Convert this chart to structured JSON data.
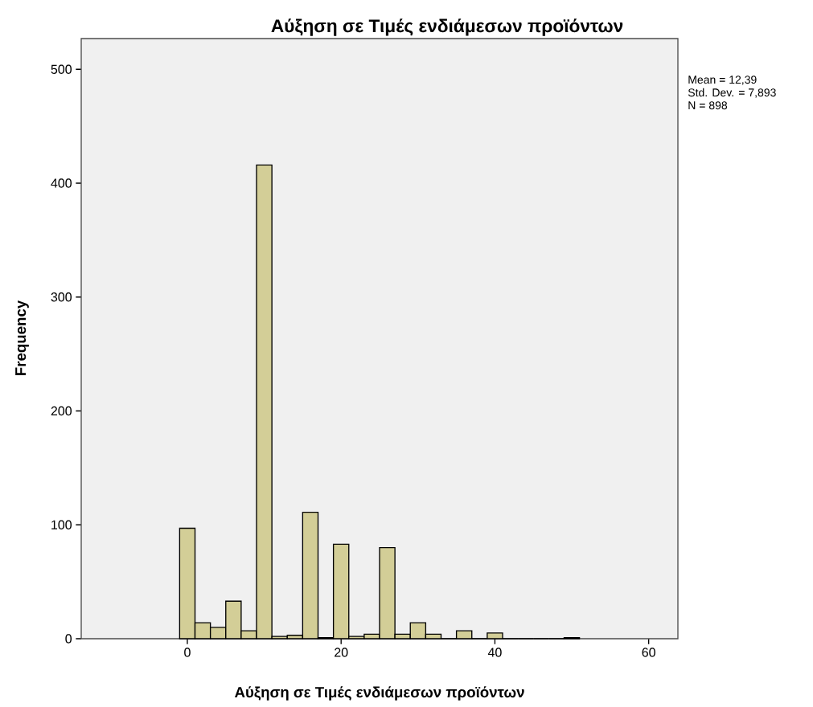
{
  "chart_data": {
    "type": "histogram",
    "title": "Αύξηση σε Τιμές ενδιάμεσων προϊόντων",
    "xlabel": "Αύξηση σε Τιμές ενδιάμεσων προϊόντων",
    "ylabel": "Frequency",
    "bins": [
      -1,
      1,
      3,
      5,
      7,
      9,
      11,
      13,
      15,
      17,
      19,
      21,
      23,
      25,
      27,
      29,
      31,
      33,
      35,
      37,
      39,
      41,
      43,
      45,
      47,
      49,
      51
    ],
    "values": [
      97,
      14,
      10,
      33,
      7,
      416,
      2,
      3,
      111,
      1,
      83,
      2,
      4,
      80,
      4,
      14,
      4,
      0,
      7,
      0,
      5,
      0,
      0,
      0,
      0,
      1
    ],
    "color": "#d3ce97",
    "xlim": [
      -13.8,
      63.8
    ],
    "ylim": [
      0,
      527
    ],
    "xticks": [
      0,
      20,
      40,
      60
    ],
    "yticks": [
      0,
      100,
      200,
      300,
      400,
      500
    ],
    "annotations": [
      "Mean = 12,39",
      "Std. Dev. = 7,893",
      "N = 898"
    ]
  }
}
